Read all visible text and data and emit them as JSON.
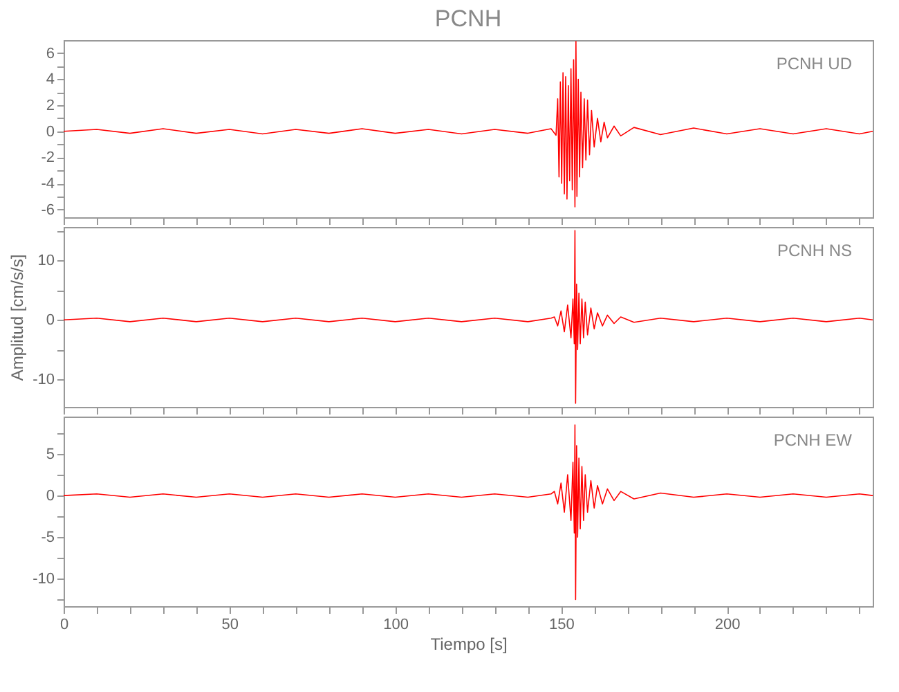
{
  "chart_data": [
    {
      "type": "line",
      "title": "PCNH",
      "annotations": [
        "PCNH   UD"
      ],
      "tick_labels": "y",
      "xlim": [
        0,
        244
      ],
      "ylim": [
        -6.6,
        7
      ],
      "xticks": [
        0,
        {
          "value": 10,
          "label": null
        },
        {
          "value": 20,
          "label": null
        },
        {
          "value": 30,
          "label": null
        },
        {
          "value": 40,
          "label": null
        },
        50,
        {
          "value": 60,
          "label": null
        },
        {
          "value": 70,
          "label": null
        },
        {
          "value": 80,
          "label": null
        },
        {
          "value": 90,
          "label": null
        },
        100,
        {
          "value": 110,
          "label": null
        },
        {
          "value": 120,
          "label": null
        },
        {
          "value": 130,
          "label": null
        },
        {
          "value": 140,
          "label": null
        },
        150,
        {
          "value": 160,
          "label": null
        },
        {
          "value": 170,
          "label": null
        },
        {
          "value": 180,
          "label": null
        },
        {
          "value": 190,
          "label": null
        },
        200,
        {
          "value": 210,
          "label": null
        },
        {
          "value": 220,
          "label": null
        },
        {
          "value": 230,
          "label": null
        },
        {
          "value": 240,
          "label": null
        }
      ],
      "yticks": [
        -6,
        {
          "value": -5,
          "label": null
        },
        -4,
        {
          "value": -3,
          "label": null
        },
        -2,
        {
          "value": -1,
          "label": null
        },
        0,
        {
          "value": 1,
          "label": null
        },
        2,
        {
          "value": 3,
          "label": null
        },
        4,
        {
          "value": 5,
          "label": null
        },
        6
      ],
      "series": [
        {
          "color": "#ff0000",
          "x": [
            0,
            10,
            20,
            30,
            40,
            50,
            60,
            70,
            80,
            90,
            100,
            110,
            120,
            130,
            140,
            147,
            148.5,
            149,
            149.4,
            149.8,
            150.2,
            150.6,
            151,
            151.4,
            151.8,
            152.2,
            152.6,
            153,
            153.4,
            153.8,
            154.2,
            154.5,
            154.8,
            155.2,
            155.6,
            156,
            156.5,
            157,
            157.5,
            158,
            158.6,
            159.2,
            160,
            161,
            162,
            163,
            164,
            166,
            168,
            172,
            180,
            190,
            200,
            210,
            220,
            230,
            240,
            244
          ],
          "values": [
            0,
            0.15,
            -0.15,
            0.2,
            -0.15,
            0.15,
            -0.2,
            0.15,
            -0.15,
            0.2,
            -0.15,
            0.15,
            -0.2,
            0.15,
            -0.15,
            0.2,
            -0.3,
            2.5,
            -3.5,
            3.8,
            -4,
            4.5,
            -4.8,
            4.2,
            -5.2,
            3.5,
            -3.8,
            4.8,
            -4.5,
            5.5,
            -5.8,
            6.9,
            -5,
            4,
            -3.5,
            3,
            -2.8,
            2.5,
            -2.2,
            2.4,
            -1.8,
            1.6,
            -1.2,
            1,
            -0.8,
            0.7,
            -0.5,
            0.4,
            -0.35,
            0.3,
            -0.25,
            0.25,
            -0.2,
            0.2,
            -0.2,
            0.2,
            -0.2,
            0
          ]
        }
      ]
    },
    {
      "type": "line",
      "ylabel": "Amplitud [cm/s/s]",
      "annotations": [
        "PCNH   NS"
      ],
      "tick_labels": "y",
      "xlim": [
        0,
        244
      ],
      "ylim": [
        -14.6,
        15.6
      ],
      "xticks": [
        0,
        {
          "value": 10,
          "label": null
        },
        {
          "value": 20,
          "label": null
        },
        {
          "value": 30,
          "label": null
        },
        {
          "value": 40,
          "label": null
        },
        50,
        {
          "value": 60,
          "label": null
        },
        {
          "value": 70,
          "label": null
        },
        {
          "value": 80,
          "label": null
        },
        {
          "value": 90,
          "label": null
        },
        100,
        {
          "value": 110,
          "label": null
        },
        {
          "value": 120,
          "label": null
        },
        {
          "value": 130,
          "label": null
        },
        {
          "value": 140,
          "label": null
        },
        150,
        {
          "value": 160,
          "label": null
        },
        {
          "value": 170,
          "label": null
        },
        {
          "value": 180,
          "label": null
        },
        {
          "value": 190,
          "label": null
        },
        200,
        {
          "value": 210,
          "label": null
        },
        {
          "value": 220,
          "label": null
        },
        {
          "value": 230,
          "label": null
        },
        {
          "value": 240,
          "label": null
        }
      ],
      "yticks": [
        -10,
        {
          "value": -5,
          "label": null
        },
        0,
        {
          "value": 5,
          "label": null
        },
        10,
        {
          "value": 15,
          "label": null
        }
      ],
      "series": [
        {
          "color": "#ff0000",
          "x": [
            0,
            10,
            20,
            30,
            40,
            50,
            60,
            70,
            80,
            90,
            100,
            110,
            120,
            130,
            140,
            147,
            148,
            149,
            150,
            151,
            152,
            153,
            153.6,
            154,
            154.2,
            154.4,
            154.7,
            155,
            155.4,
            155.8,
            156.3,
            156.8,
            157.3,
            158,
            159,
            160,
            161,
            162.5,
            164,
            166,
            168,
            172,
            180,
            190,
            200,
            210,
            220,
            230,
            240,
            244
          ],
          "values": [
            0,
            0.3,
            -0.3,
            0.3,
            -0.3,
            0.3,
            -0.3,
            0.3,
            -0.3,
            0.3,
            -0.3,
            0.3,
            -0.3,
            0.3,
            -0.3,
            0.3,
            0.5,
            -1,
            1.5,
            -2,
            2.5,
            -3,
            3.5,
            -4,
            15,
            -14,
            6,
            -5,
            4.5,
            -4,
            3.5,
            -3,
            3,
            -2.5,
            2,
            -1.5,
            1.2,
            -1,
            0.8,
            -0.6,
            0.5,
            -0.4,
            0.3,
            -0.3,
            0.3,
            -0.3,
            0.3,
            -0.3,
            0.3,
            0
          ]
        }
      ]
    },
    {
      "type": "line",
      "xlabel": "Tiempo [s]",
      "annotations": [
        "PCNH   EW"
      ],
      "xlim": [
        0,
        244
      ],
      "ylim": [
        -13.3,
        9.5
      ],
      "xticks": [
        0,
        {
          "value": 10,
          "label": null
        },
        {
          "value": 20,
          "label": null
        },
        {
          "value": 30,
          "label": null
        },
        {
          "value": 40,
          "label": null
        },
        50,
        {
          "value": 60,
          "label": null
        },
        {
          "value": 70,
          "label": null
        },
        {
          "value": 80,
          "label": null
        },
        {
          "value": 90,
          "label": null
        },
        100,
        {
          "value": 110,
          "label": null
        },
        {
          "value": 120,
          "label": null
        },
        {
          "value": 130,
          "label": null
        },
        {
          "value": 140,
          "label": null
        },
        150,
        {
          "value": 160,
          "label": null
        },
        {
          "value": 170,
          "label": null
        },
        {
          "value": 180,
          "label": null
        },
        {
          "value": 190,
          "label": null
        },
        200,
        {
          "value": 210,
          "label": null
        },
        {
          "value": 220,
          "label": null
        },
        {
          "value": 230,
          "label": null
        },
        {
          "value": 240,
          "label": null
        }
      ],
      "yticks": [
        {
          "value": -12.5,
          "label": null
        },
        -10,
        {
          "value": -7.5,
          "label": null
        },
        -5,
        {
          "value": -2.5,
          "label": null
        },
        0,
        {
          "value": 2.5,
          "label": null
        },
        5,
        {
          "value": 7.5,
          "label": null
        }
      ],
      "series": [
        {
          "color": "#ff0000",
          "x": [
            0,
            10,
            20,
            30,
            40,
            50,
            60,
            70,
            80,
            90,
            100,
            110,
            120,
            130,
            140,
            147,
            148,
            149,
            150,
            151,
            152,
            153,
            153.6,
            154,
            154.2,
            154.4,
            154.7,
            155,
            155.4,
            155.8,
            156.3,
            156.8,
            157.3,
            158,
            159,
            160,
            161,
            162.5,
            164,
            166,
            168,
            172,
            180,
            190,
            200,
            210,
            220,
            230,
            240,
            244
          ],
          "values": [
            0,
            0.2,
            -0.2,
            0.2,
            -0.2,
            0.2,
            -0.2,
            0.2,
            -0.2,
            0.2,
            -0.2,
            0.2,
            -0.2,
            0.2,
            -0.2,
            0.2,
            0.5,
            -1,
            1.5,
            -2,
            2.5,
            -3,
            4,
            -4.5,
            8.5,
            -12.5,
            6,
            -5,
            4.5,
            -4,
            3.5,
            -3,
            2.5,
            -2,
            1.8,
            -1.5,
            1.2,
            -1,
            0.8,
            -0.6,
            0.5,
            -0.4,
            0.3,
            -0.2,
            0.2,
            -0.2,
            0.2,
            -0.2,
            0.2,
            0
          ]
        }
      ]
    }
  ]
}
